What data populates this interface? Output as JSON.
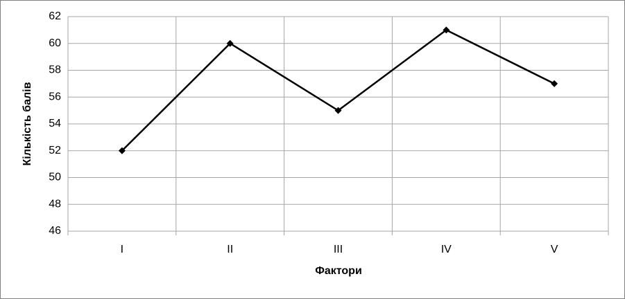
{
  "chart_data": {
    "type": "line",
    "x_label": "Фактори",
    "y_label": "Кількість балів",
    "categories": [
      "I",
      "II",
      "III",
      "IV",
      "V"
    ],
    "series": [
      {
        "name": null,
        "color": "#000000",
        "values": [
          52,
          60,
          55,
          61,
          57
        ]
      }
    ],
    "ylim": [
      46,
      62
    ],
    "yticks": [
      46,
      48,
      50,
      52,
      54,
      56,
      58,
      60,
      62
    ],
    "grid": true
  }
}
